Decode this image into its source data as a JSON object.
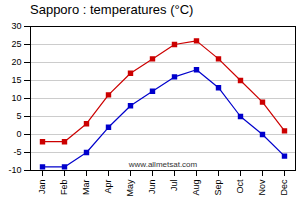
{
  "chart_data": {
    "type": "line",
    "title": "Sapporo : temperatures (°C)",
    "categories": [
      "Jan",
      "Feb",
      "Mar",
      "Apr",
      "May",
      "Jun",
      "Jul",
      "Aug",
      "Sep",
      "Oct",
      "Nov",
      "Dec"
    ],
    "series": [
      {
        "color": "#cc0000",
        "marker": "square",
        "values": [
          -2,
          -2,
          3,
          11,
          17,
          21,
          25,
          26,
          21,
          15,
          9,
          1
        ]
      },
      {
        "color": "#0000cc",
        "marker": "square",
        "values": [
          -9,
          -9,
          -5,
          2,
          8,
          12,
          16,
          18,
          13,
          5,
          0,
          -6
        ]
      }
    ],
    "ylim": [
      -10,
      30
    ],
    "yticks": [
      -10,
      -5,
      0,
      5,
      10,
      15,
      20,
      25,
      30
    ],
    "grid": true,
    "annotations": [
      "www.allmetsat.com"
    ]
  }
}
